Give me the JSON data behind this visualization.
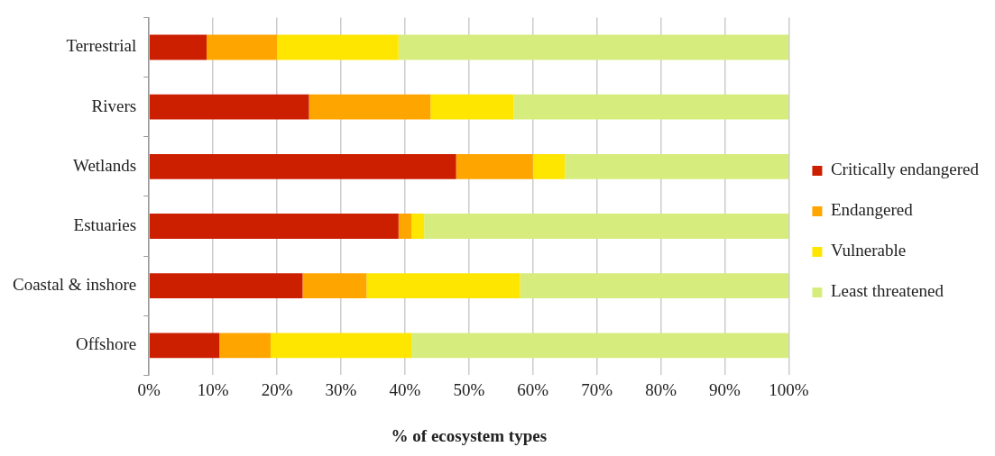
{
  "chart_data": {
    "type": "bar",
    "orientation": "horizontal",
    "stacked": true,
    "xlabel": "% of ecosystem types",
    "categories": [
      "Terrestrial",
      "Rivers",
      "Wetlands",
      "Estuaries",
      "Coastal & inshore",
      "Offshore"
    ],
    "series": [
      {
        "name": "Critically endangered",
        "color": "#cc1f00",
        "values": [
          9,
          25,
          48,
          39,
          24,
          11
        ]
      },
      {
        "name": "Endangered",
        "color": "#ffa500",
        "values": [
          11,
          19,
          12,
          2,
          10,
          8
        ]
      },
      {
        "name": "Vulnerable",
        "color": "#ffe600",
        "values": [
          19,
          13,
          5,
          2,
          24,
          22
        ]
      },
      {
        "name": "Least threatened",
        "color": "#d6ed7d",
        "values": [
          61,
          43,
          35,
          57,
          42,
          59
        ]
      }
    ],
    "xlim": [
      0,
      100
    ],
    "xticks": [
      {
        "value": 0,
        "label": "0%"
      },
      {
        "value": 10,
        "label": "10%"
      },
      {
        "value": 20,
        "label": "20%"
      },
      {
        "value": 30,
        "label": "30%"
      },
      {
        "value": 40,
        "label": "40%"
      },
      {
        "value": 50,
        "label": "50%"
      },
      {
        "value": 60,
        "label": "60%"
      },
      {
        "value": 70,
        "label": "70%"
      },
      {
        "value": 80,
        "label": "80%"
      },
      {
        "value": 90,
        "label": "90%"
      },
      {
        "value": 100,
        "label": "100%"
      }
    ],
    "grid": "x",
    "legend": "right"
  }
}
